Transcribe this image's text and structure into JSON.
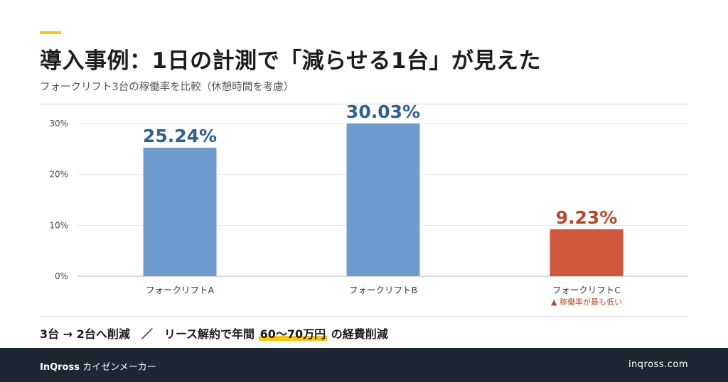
{
  "header": {
    "title": "導入事例：1日の計測で「減らせる1台」が見えた",
    "subtitle": "フォークリフト3台の稼働率を比較（休憩時間を考慮）"
  },
  "chart_data": {
    "type": "bar",
    "categories": [
      "フォークリフトA",
      "フォークリフトB",
      "フォークリフトC"
    ],
    "values": [
      25.24,
      30.03,
      9.23
    ],
    "value_labels": [
      "25.24%",
      "30.03%",
      "9.23%"
    ],
    "ylim": [
      0,
      30
    ],
    "yticks": [
      0,
      10,
      20,
      30
    ],
    "ytick_labels": [
      "0%",
      "10%",
      "20%",
      "30%"
    ],
    "grid": true,
    "colors": {
      "normal_bar": "#6f9ccf",
      "normal_label": "#2f5f93",
      "highlight_bar": "#cf573c",
      "highlight_label": "#b34a2e"
    },
    "highlight_index": 2,
    "annotation": "▲ 稼働率が最も低い"
  },
  "summary": {
    "prefix": "3台 → 2台へ削減　／　リース解約で年間 ",
    "highlight": "60〜70万円",
    "suffix": " の経費削減"
  },
  "footer": {
    "brand_name": "InQross",
    "brand_tagline": "カイゼンメーカー",
    "site": "inqross.com"
  },
  "colors": {
    "accent": "#f5c518",
    "footer_bg": "#1e2633"
  }
}
